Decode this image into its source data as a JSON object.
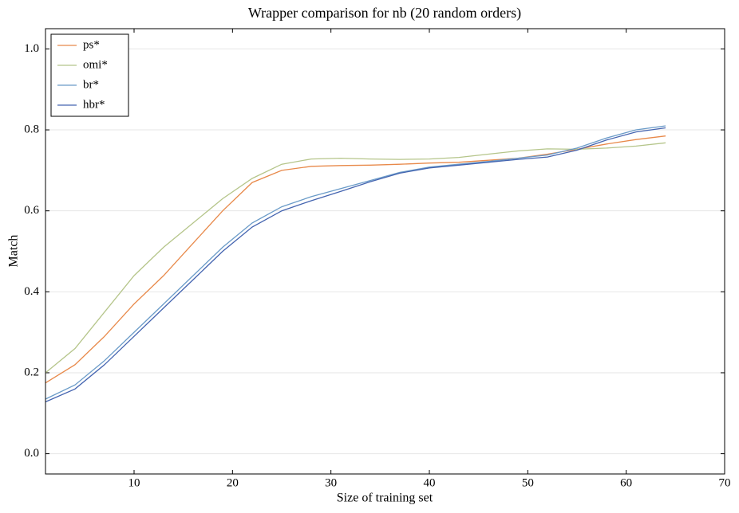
{
  "chart_data": {
    "type": "line",
    "title": "Wrapper comparison for nb (20 random orders)",
    "x_label": "Size of training set",
    "y_label": "Match",
    "x": [
      1,
      4,
      7,
      10,
      13,
      16,
      19,
      22,
      25,
      28,
      31,
      34,
      37,
      40,
      43,
      46,
      49,
      52,
      55,
      58,
      61,
      64
    ],
    "series": [
      {
        "name": "ps*",
        "color": "#e8894a",
        "values": [
          0.175,
          0.22,
          0.29,
          0.37,
          0.44,
          0.52,
          0.6,
          0.67,
          0.7,
          0.71,
          0.712,
          0.713,
          0.715,
          0.718,
          0.72,
          0.725,
          0.73,
          0.74,
          0.752,
          0.765,
          0.776,
          0.785
        ]
      },
      {
        "name": "omi*",
        "color": "#b5c58a",
        "values": [
          0.2,
          0.26,
          0.35,
          0.44,
          0.51,
          0.57,
          0.63,
          0.68,
          0.715,
          0.728,
          0.73,
          0.728,
          0.727,
          0.728,
          0.732,
          0.74,
          0.748,
          0.753,
          0.752,
          0.755,
          0.76,
          0.768
        ]
      },
      {
        "name": "br*",
        "color": "#6a9bc8",
        "values": [
          0.135,
          0.17,
          0.23,
          0.3,
          0.37,
          0.44,
          0.51,
          0.57,
          0.61,
          0.635,
          0.655,
          0.675,
          0.695,
          0.708,
          0.715,
          0.722,
          0.73,
          0.738,
          0.755,
          0.78,
          0.8,
          0.81
        ]
      },
      {
        "name": "hbr*",
        "color": "#4464b0",
        "values": [
          0.128,
          0.16,
          0.22,
          0.29,
          0.36,
          0.43,
          0.5,
          0.56,
          0.6,
          0.625,
          0.648,
          0.672,
          0.693,
          0.706,
          0.713,
          0.72,
          0.727,
          0.733,
          0.75,
          0.775,
          0.795,
          0.805
        ]
      }
    ],
    "xlim": [
      1,
      70
    ],
    "xticks": [
      10,
      20,
      30,
      40,
      50,
      60,
      70
    ],
    "ylim": [
      -0.05,
      1.05
    ],
    "yticks": [
      {
        "value": 0,
        "label": "0.0"
      },
      0.2,
      0.4,
      0.6,
      0.8,
      {
        "value": 1,
        "label": "1.0"
      }
    ],
    "grid": true,
    "legend": "upper-left"
  }
}
